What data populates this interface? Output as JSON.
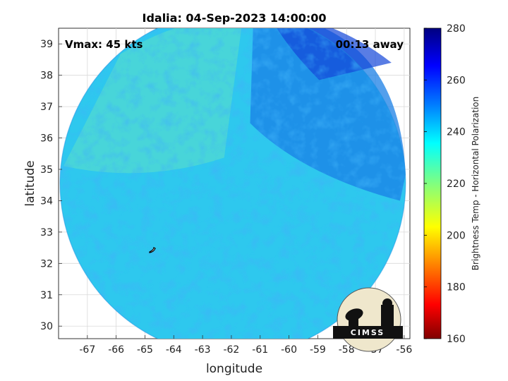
{
  "chart_data": {
    "type": "heatmap",
    "title": "Idalia: 04-Sep-2023 14:00:00",
    "xlabel": "longitude",
    "ylabel": "latitude",
    "xlim": [
      -68,
      -55.8
    ],
    "ylim": [
      29.6,
      39.5
    ],
    "x_ticks": [
      -67,
      -66,
      -65,
      -64,
      -63,
      -62,
      -61,
      -60,
      -59,
      -58,
      -57,
      -56
    ],
    "y_ticks": [
      30,
      31,
      32,
      33,
      34,
      35,
      36,
      37,
      38,
      39
    ],
    "grid": true,
    "annotations": {
      "vmax": "Vmax: 45 kts",
      "away": "00:13 away"
    },
    "colorbar": {
      "label": "Brightness Temp - Horizontal Polarization",
      "range": [
        160,
        280
      ],
      "ticks": [
        160,
        180,
        200,
        220,
        240,
        260,
        280
      ],
      "colormap": [
        "#800000",
        "#ff0000",
        "#ff8000",
        "#ffff00",
        "#80ff80",
        "#00ffff",
        "#0080ff",
        "#0000ff",
        "#000080"
      ]
    },
    "swath": {
      "center_lon": -61.95,
      "center_lat": 34.55,
      "radius_lon": 6.0,
      "radius_lat": 5.5,
      "dominant_value": 235
    },
    "logo": "CIMSS"
  }
}
